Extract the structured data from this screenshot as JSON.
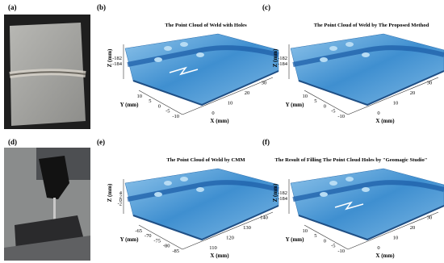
{
  "panels": [
    {
      "label": "(a)"
    },
    {
      "label": "(b)",
      "title": "The Point Cloud of Weld with Holes",
      "z_label": "Z (mm)",
      "z_ticks": [
        "-182",
        "-184"
      ],
      "y_label": "Y (mm)",
      "y_ticks": [
        "10",
        "5",
        "0",
        "-5",
        "-10"
      ],
      "x_label": "X (mm)",
      "x_ticks": [
        "0",
        "10",
        "20",
        "30"
      ]
    },
    {
      "label": "(c)",
      "title": "The Point Cloud of Weld by The Proposed Method",
      "z_label": "Z (mm)",
      "z_ticks": [
        "-182",
        "-184"
      ],
      "y_label": "Y (mm)",
      "y_ticks": [
        "10",
        "5",
        "0",
        "-5",
        "-10"
      ],
      "x_label": "X (mm)",
      "x_ticks": [
        "0",
        "10",
        "20",
        "30"
      ]
    },
    {
      "label": "(d)"
    },
    {
      "label": "(e)",
      "title": "The Point Cloud of Weld by CMM",
      "z_label": "Z (mm)",
      "z_ticks": [
        "4",
        "2",
        "0",
        "-2"
      ],
      "y_label": "Y (mm)",
      "y_ticks": [
        "-65",
        "-70",
        "-75",
        "-80",
        "-85"
      ],
      "x_label": "X (mm)",
      "x_ticks": [
        "110",
        "120",
        "130",
        "140"
      ]
    },
    {
      "label": "(f)",
      "title": "The Result of Filling The Point Cloud Holes by \"Geomagic Studio\"",
      "z_label": "Z (mm)",
      "z_ticks": [
        "-182",
        "-184"
      ],
      "y_label": "Y (mm)",
      "y_ticks": [
        "10",
        "5",
        "0",
        "-5",
        "-10"
      ],
      "x_label": "X (mm)",
      "x_ticks": [
        "0",
        "10",
        "20",
        "30"
      ]
    }
  ]
}
